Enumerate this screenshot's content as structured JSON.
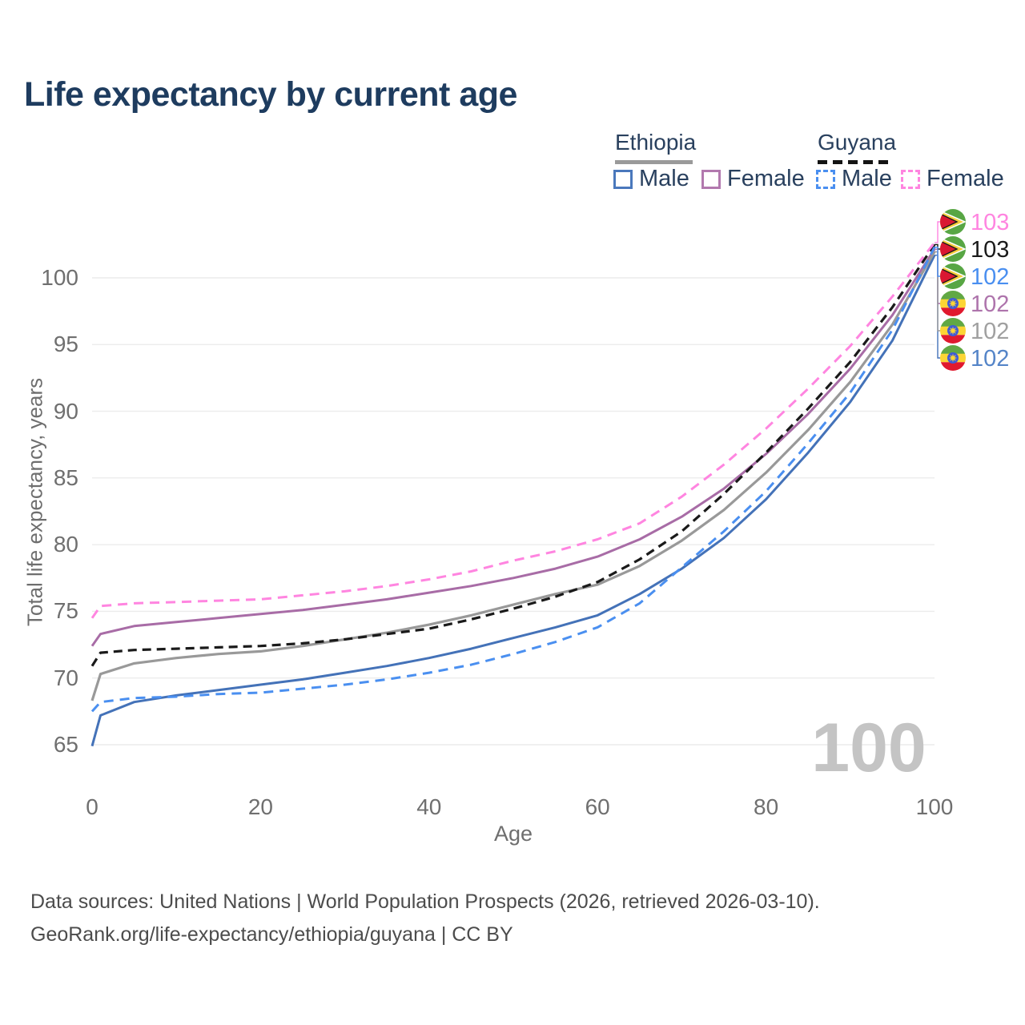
{
  "title": "Life expectancy by current age",
  "legend": {
    "groups": [
      {
        "country": "Ethiopia",
        "underline": {
          "color": "#9a9a9a",
          "dashed": false
        },
        "items": [
          {
            "label": "Male",
            "color": "#4a78bc",
            "dashed": false
          },
          {
            "label": "Female",
            "color": "#b279ae",
            "dashed": false
          }
        ]
      },
      {
        "country": "Guyana",
        "underline": {
          "color": "#141414",
          "dashed": true
        },
        "items": [
          {
            "label": "Male",
            "color": "#4a8ff0",
            "dashed": true
          },
          {
            "label": "Female",
            "color": "#ff85e0",
            "dashed": true
          }
        ]
      }
    ]
  },
  "chart_data": {
    "type": "line",
    "title": "Life expectancy by current age",
    "xlabel": "Age",
    "ylabel": "Total life expectancy, years",
    "x_ticks": [
      0,
      20,
      40,
      60,
      80,
      100
    ],
    "y_ticks": [
      65,
      70,
      75,
      80,
      85,
      90,
      95,
      100
    ],
    "xlim": [
      0,
      100
    ],
    "ylim": [
      63.5,
      104
    ],
    "grid": "horizontal",
    "watermark": "100",
    "x": [
      0,
      1,
      5,
      10,
      15,
      20,
      25,
      30,
      35,
      40,
      45,
      50,
      55,
      60,
      65,
      70,
      75,
      80,
      85,
      90,
      95,
      100
    ],
    "series": [
      {
        "name": "Ethiopia Male",
        "country": "Ethiopia",
        "sex": "Male",
        "color": "#4472b8",
        "dashed": false,
        "flag": "ethiopia",
        "slot": 5,
        "end_label": "102",
        "end_label_color": "#5585c8",
        "values": [
          64.9,
          67.2,
          68.2,
          68.7,
          69.1,
          69.5,
          69.9,
          70.4,
          70.9,
          71.5,
          72.2,
          73.0,
          73.8,
          74.7,
          76.3,
          78.2,
          80.5,
          83.4,
          86.9,
          90.7,
          95.3,
          101.7
        ]
      },
      {
        "name": "Ethiopia Female",
        "country": "Ethiopia",
        "sex": "Female",
        "color": "#a86ca6",
        "dashed": false,
        "flag": "ethiopia",
        "slot": 3,
        "end_label": "102",
        "end_label_color": "#ae74ac",
        "values": [
          72.4,
          73.3,
          73.9,
          74.2,
          74.5,
          74.8,
          75.1,
          75.5,
          75.9,
          76.4,
          76.9,
          77.5,
          78.2,
          79.1,
          80.4,
          82.1,
          84.2,
          86.8,
          89.8,
          93.2,
          97.2,
          102.15
        ]
      },
      {
        "name": "Ethiopia Both sexes",
        "country": "Ethiopia",
        "sex": "Both",
        "color": "#999999",
        "dashed": false,
        "flag": "ethiopia",
        "slot": 4,
        "end_label": "102",
        "end_label_color": "#a0a0a0",
        "values": [
          68.3,
          70.3,
          71.1,
          71.5,
          71.8,
          72.0,
          72.4,
          72.9,
          73.4,
          74.0,
          74.7,
          75.5,
          76.3,
          77.0,
          78.4,
          80.3,
          82.6,
          85.4,
          88.6,
          92.2,
          96.5,
          101.95
        ]
      },
      {
        "name": "Guyana Both sexes",
        "country": "Guyana",
        "sex": "Both",
        "color": "#1a1a1a",
        "dashed": true,
        "flag": "guyana",
        "slot": 1,
        "end_label": "103",
        "end_label_color": "#1a1a1a",
        "values": [
          70.9,
          71.9,
          72.1,
          72.2,
          72.3,
          72.4,
          72.6,
          72.9,
          73.3,
          73.7,
          74.4,
          75.2,
          76.1,
          77.2,
          78.9,
          81.0,
          83.8,
          86.9,
          90.2,
          93.7,
          97.8,
          102.5
        ]
      },
      {
        "name": "Guyana Male",
        "country": "Guyana",
        "sex": "Male",
        "color": "#4a8ff0",
        "dashed": true,
        "flag": "guyana",
        "slot": 2,
        "end_label": "102",
        "end_label_color": "#4a8ff0",
        "values": [
          67.5,
          68.2,
          68.5,
          68.6,
          68.8,
          68.9,
          69.2,
          69.5,
          69.9,
          70.4,
          71.0,
          71.8,
          72.7,
          73.8,
          75.6,
          78.3,
          81.0,
          84.0,
          87.6,
          91.4,
          96.1,
          102.3
        ]
      },
      {
        "name": "Guyana Female",
        "country": "Guyana",
        "sex": "Female",
        "color": "#ff85e0",
        "dashed": true,
        "flag": "guyana",
        "slot": 0,
        "end_label": "103",
        "end_label_color": "#ff85e0",
        "values": [
          74.5,
          75.4,
          75.6,
          75.7,
          75.8,
          75.9,
          76.2,
          76.5,
          76.9,
          77.4,
          78.0,
          78.8,
          79.5,
          80.4,
          81.6,
          83.6,
          86.0,
          88.7,
          91.7,
          94.9,
          98.6,
          102.65
        ]
      }
    ]
  },
  "footer": {
    "line1": "Data sources: United Nations | World Population Prospects (2026, retrieved 2026-03-10).",
    "line2": "GeoRank.org/life-expectancy/ethiopia/guyana | CC BY"
  }
}
